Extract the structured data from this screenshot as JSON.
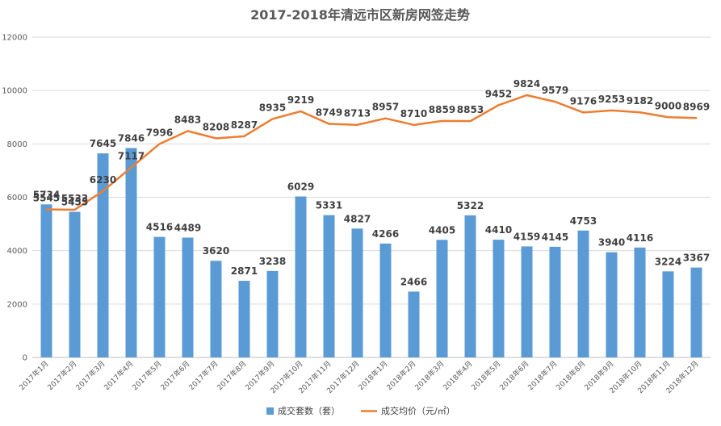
{
  "chart_data": {
    "type": "bar",
    "title": "2017-2018年清远市区新房网签走势",
    "categories": [
      "2017年1月",
      "2017年2月",
      "2017年3月",
      "2017年4月",
      "2017年5月",
      "2017年6月",
      "2017年7月",
      "2017年8月",
      "2017年9月",
      "2017年10月",
      "2017年11月",
      "2017年12月",
      "2018年1月",
      "2018年2月",
      "2018年3月",
      "2018年4月",
      "2018年5月",
      "2018年6月",
      "2018年7月",
      "2018年8月",
      "2018年9月",
      "2018年10月",
      "2018年11月",
      "2018年12月"
    ],
    "series": [
      {
        "name": "成交套数（套）",
        "type": "bar",
        "color": "#5B9BD5",
        "values": [
          5734,
          5455,
          7645,
          7846,
          4516,
          4489,
          3620,
          2871,
          3238,
          6029,
          5331,
          4827,
          4266,
          2466,
          4405,
          5322,
          4410,
          4159,
          4145,
          4753,
          3940,
          4116,
          3224,
          3367
        ]
      },
      {
        "name": "成交均价（元/㎡）",
        "type": "line",
        "color": "#ED7D31",
        "values": [
          5545,
          5533,
          6230,
          7117,
          7996,
          8483,
          8208,
          8287,
          8935,
          9219,
          8749,
          8713,
          8957,
          8710,
          8859,
          8853,
          9452,
          9824,
          9579,
          9176,
          9253,
          9182,
          9000,
          8969
        ]
      }
    ],
    "ylim": [
      0,
      12000
    ],
    "yticks": [
      "0",
      "2000",
      "4000",
      "6000",
      "8000",
      "10000",
      "12000"
    ],
    "grid": true,
    "legend_position": "bottom"
  }
}
